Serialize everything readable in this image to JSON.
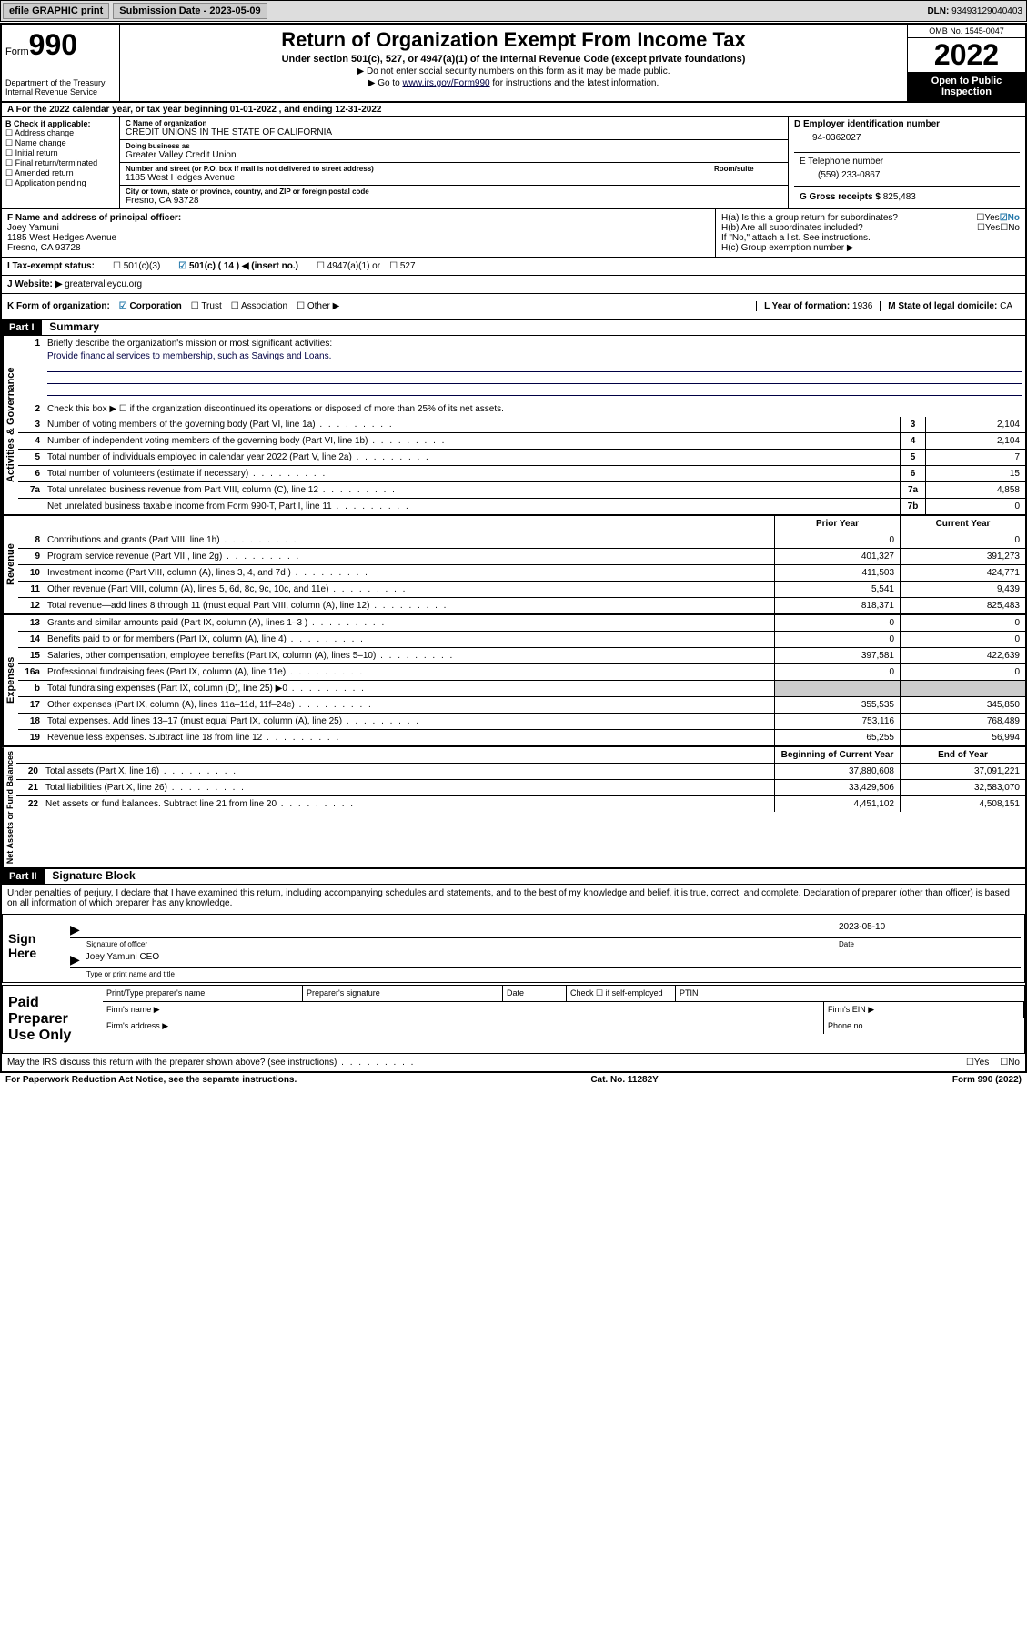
{
  "topbar": {
    "efile": "efile GRAPHIC print",
    "submission_label": "Submission Date - ",
    "submission_date": "2023-05-09",
    "dln_label": "DLN: ",
    "dln": "93493129040403"
  },
  "header": {
    "form_label": "Form",
    "form_no": "990",
    "dept": "Department of the Treasury",
    "irs": "Internal Revenue Service",
    "title": "Return of Organization Exempt From Income Tax",
    "sub": "Under section 501(c), 527, or 4947(a)(1) of the Internal Revenue Code (except private foundations)",
    "note1": "▶ Do not enter social security numbers on this form as it may be made public.",
    "note2_pre": "▶ Go to ",
    "note2_link": "www.irs.gov/Form990",
    "note2_post": " for instructions and the latest information.",
    "omb": "OMB No. 1545-0047",
    "year": "2022",
    "inspection": "Open to Public Inspection"
  },
  "line_a": "A For the 2022 calendar year, or tax year beginning 01-01-2022   , and ending 12-31-2022",
  "section_b": {
    "label": "B Check if applicable:",
    "items": [
      "Address change",
      "Name change",
      "Initial return",
      "Final return/terminated",
      "Amended return",
      "Application pending"
    ]
  },
  "section_c": {
    "name_label": "C Name of organization",
    "name": "CREDIT UNIONS IN THE STATE OF CALIFORNIA",
    "dba_label": "Doing business as",
    "dba": "Greater Valley Credit Union",
    "addr_label": "Number and street (or P.O. box if mail is not delivered to street address)",
    "room_label": "Room/suite",
    "addr": "1185 West Hedges Avenue",
    "city_label": "City or town, state or province, country, and ZIP or foreign postal code",
    "city": "Fresno, CA  93728"
  },
  "section_d": {
    "ein_label": "D Employer identification number",
    "ein": "94-0362027",
    "phone_label": "E Telephone number",
    "phone": "(559) 233-0867",
    "gross_label": "G Gross receipts $ ",
    "gross": "825,483"
  },
  "section_f": {
    "label": "F  Name and address of principal officer:",
    "name": "Joey Yamuni",
    "addr1": "1185 West Hedges Avenue",
    "addr2": "Fresno, CA  93728"
  },
  "section_h": {
    "ha": "H(a)  Is this a group return for subordinates?",
    "hb": "H(b)  Are all subordinates included?",
    "hb_note": "If \"No,\" attach a list. See instructions.",
    "hc": "H(c)  Group exemption number ▶",
    "yes": "Yes",
    "no": "No"
  },
  "tax_status": {
    "label": "I   Tax-exempt status:",
    "opt1": "501(c)(3)",
    "opt2": "501(c) ( 14 ) ◀ (insert no.)",
    "opt3": "4947(a)(1) or",
    "opt4": "527"
  },
  "website": {
    "label": "J   Website: ▶ ",
    "val": "greatervalleycu.org"
  },
  "k": {
    "label": "K Form of organization:",
    "corp": "Corporation",
    "trust": "Trust",
    "assoc": "Association",
    "other": "Other ▶",
    "l_label": "L Year of formation: ",
    "l_val": "1936",
    "m_label": "M State of legal domicile: ",
    "m_val": "CA"
  },
  "part1": {
    "hdr": "Part I",
    "title": "Summary",
    "q1": "Briefly describe the organization's mission or most significant activities:",
    "mission": "Provide financial services to membership, such as Savings and Loans.",
    "q2": "Check this box ▶ ☐  if the organization discontinued its operations or disposed of more than 25% of its net assets.",
    "lines_single": [
      {
        "n": "3",
        "t": "Number of voting members of the governing body (Part VI, line 1a)",
        "box": "3",
        "v": "2,104"
      },
      {
        "n": "4",
        "t": "Number of independent voting members of the governing body (Part VI, line 1b)",
        "box": "4",
        "v": "2,104"
      },
      {
        "n": "5",
        "t": "Total number of individuals employed in calendar year 2022 (Part V, line 2a)",
        "box": "5",
        "v": "7"
      },
      {
        "n": "6",
        "t": "Total number of volunteers (estimate if necessary)",
        "box": "6",
        "v": "15"
      },
      {
        "n": "7a",
        "t": "Total unrelated business revenue from Part VIII, column (C), line 12",
        "box": "7a",
        "v": "4,858"
      },
      {
        "n": "",
        "t": "Net unrelated business taxable income from Form 990-T, Part I, line 11",
        "box": "7b",
        "v": "0"
      }
    ],
    "hdr_prior": "Prior Year",
    "hdr_curr": "Current Year",
    "revenue": [
      {
        "n": "8",
        "t": "Contributions and grants (Part VIII, line 1h)",
        "p": "0",
        "c": "0"
      },
      {
        "n": "9",
        "t": "Program service revenue (Part VIII, line 2g)",
        "p": "401,327",
        "c": "391,273"
      },
      {
        "n": "10",
        "t": "Investment income (Part VIII, column (A), lines 3, 4, and 7d )",
        "p": "411,503",
        "c": "424,771"
      },
      {
        "n": "11",
        "t": "Other revenue (Part VIII, column (A), lines 5, 6d, 8c, 9c, 10c, and 11e)",
        "p": "5,541",
        "c": "9,439"
      },
      {
        "n": "12",
        "t": "Total revenue—add lines 8 through 11 (must equal Part VIII, column (A), line 12)",
        "p": "818,371",
        "c": "825,483"
      }
    ],
    "expenses": [
      {
        "n": "13",
        "t": "Grants and similar amounts paid (Part IX, column (A), lines 1–3 )",
        "p": "0",
        "c": "0"
      },
      {
        "n": "14",
        "t": "Benefits paid to or for members (Part IX, column (A), line 4)",
        "p": "0",
        "c": "0"
      },
      {
        "n": "15",
        "t": "Salaries, other compensation, employee benefits (Part IX, column (A), lines 5–10)",
        "p": "397,581",
        "c": "422,639"
      },
      {
        "n": "16a",
        "t": "Professional fundraising fees (Part IX, column (A), line 11e)",
        "p": "0",
        "c": "0"
      },
      {
        "n": "b",
        "t": "Total fundraising expenses (Part IX, column (D), line 25) ▶0",
        "p": "",
        "c": ""
      },
      {
        "n": "17",
        "t": "Other expenses (Part IX, column (A), lines 11a–11d, 11f–24e)",
        "p": "355,535",
        "c": "345,850"
      },
      {
        "n": "18",
        "t": "Total expenses. Add lines 13–17 (must equal Part IX, column (A), line 25)",
        "p": "753,116",
        "c": "768,489"
      },
      {
        "n": "19",
        "t": "Revenue less expenses. Subtract line 18 from line 12",
        "p": "65,255",
        "c": "56,994"
      }
    ],
    "hdr_begin": "Beginning of Current Year",
    "hdr_end": "End of Year",
    "netassets": [
      {
        "n": "20",
        "t": "Total assets (Part X, line 16)",
        "p": "37,880,608",
        "c": "37,091,221"
      },
      {
        "n": "21",
        "t": "Total liabilities (Part X, line 26)",
        "p": "33,429,506",
        "c": "32,583,070"
      },
      {
        "n": "22",
        "t": "Net assets or fund balances. Subtract line 21 from line 20",
        "p": "4,451,102",
        "c": "4,508,151"
      }
    ],
    "side_gov": "Activities & Governance",
    "side_rev": "Revenue",
    "side_exp": "Expenses",
    "side_net": "Net Assets or Fund Balances"
  },
  "part2": {
    "hdr": "Part II",
    "title": "Signature Block",
    "penalties": "Under penalties of perjury, I declare that I have examined this return, including accompanying schedules and statements, and to the best of my knowledge and belief, it is true, correct, and complete. Declaration of preparer (other than officer) is based on all information of which preparer has any knowledge.",
    "sign_here": "Sign Here",
    "sig_officer": "Signature of officer",
    "date_label": "Date",
    "date": "2023-05-10",
    "officer": "Joey Yamuni CEO",
    "officer_sub": "Type or print name and title",
    "paid": "Paid Preparer Use Only",
    "prep_name": "Print/Type preparer's name",
    "prep_sig": "Preparer's signature",
    "prep_date": "Date",
    "prep_check": "Check ☐ if self-employed",
    "ptin": "PTIN",
    "firm_name": "Firm's name  ▶",
    "firm_ein": "Firm's EIN ▶",
    "firm_addr": "Firm's address ▶",
    "phone": "Phone no."
  },
  "discuss": {
    "text": "May the IRS discuss this return with the preparer shown above? (see instructions)",
    "yes": "Yes",
    "no": "No"
  },
  "footer": {
    "left": "For Paperwork Reduction Act Notice, see the separate instructions.",
    "mid": "Cat. No. 11282Y",
    "right": "Form 990 (2022)"
  }
}
